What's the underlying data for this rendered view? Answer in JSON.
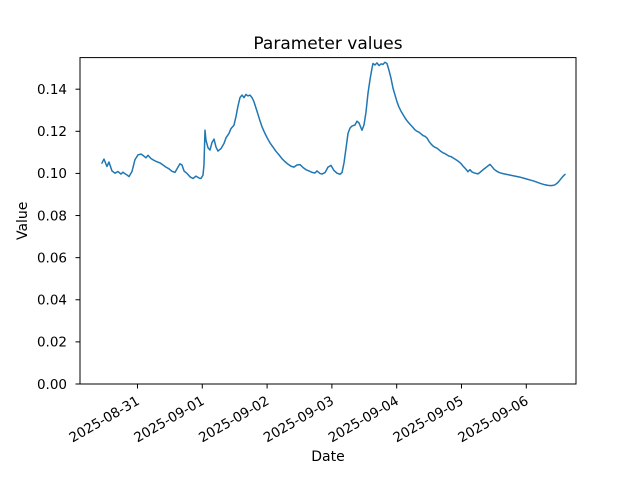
{
  "figure": {
    "background": "#ffffff"
  },
  "chart_data": {
    "type": "line",
    "title": "Parameter values",
    "xlabel": "Date",
    "ylabel": "Value",
    "grid": false,
    "legend": "none",
    "line_color": "#1f77b4",
    "line_width": 1.5,
    "axes_color": "#000000",
    "x_unit": "days since 2025-08-31 00:00",
    "xlim": [
      -0.887,
      6.767
    ],
    "ylim": [
      0,
      0.155
    ],
    "x_ticks": [
      {
        "d": 0,
        "label": "2025-08-31"
      },
      {
        "d": 1,
        "label": "2025-09-01"
      },
      {
        "d": 2,
        "label": "2025-09-02"
      },
      {
        "d": 3,
        "label": "2025-09-03"
      },
      {
        "d": 4,
        "label": "2025-09-04"
      },
      {
        "d": 5,
        "label": "2025-09-05"
      },
      {
        "d": 6,
        "label": "2025-09-06"
      }
    ],
    "y_ticks": [
      {
        "v": 0.0,
        "label": "0.00"
      },
      {
        "v": 0.02,
        "label": "0.02"
      },
      {
        "v": 0.04,
        "label": "0.04"
      },
      {
        "v": 0.06,
        "label": "0.06"
      },
      {
        "v": 0.08,
        "label": "0.08"
      },
      {
        "v": 0.1,
        "label": "0.10"
      },
      {
        "v": 0.12,
        "label": "0.12"
      },
      {
        "v": 0.14,
        "label": "0.14"
      }
    ],
    "noise_amplitude": 0.0006,
    "series": [
      {
        "name": "parameter",
        "points": [
          [
            -0.548,
            0.1049
          ],
          [
            -0.517,
            0.1068
          ],
          [
            -0.471,
            0.1033
          ],
          [
            -0.44,
            0.1054
          ],
          [
            -0.394,
            0.1012
          ],
          [
            -0.347,
            0.1001
          ],
          [
            -0.301,
            0.1009
          ],
          [
            -0.255,
            0.0997
          ],
          [
            -0.224,
            0.1006
          ],
          [
            -0.162,
            0.0993
          ],
          [
            -0.131,
            0.0985
          ],
          [
            -0.085,
            0.1009
          ],
          [
            -0.039,
            0.1065
          ],
          [
            0.008,
            0.1088
          ],
          [
            0.054,
            0.1092
          ],
          [
            0.1,
            0.1082
          ],
          [
            0.131,
            0.1074
          ],
          [
            0.162,
            0.1086
          ],
          [
            0.208,
            0.1071
          ],
          [
            0.255,
            0.1062
          ],
          [
            0.301,
            0.1055
          ],
          [
            0.347,
            0.105
          ],
          [
            0.394,
            0.104
          ],
          [
            0.44,
            0.103
          ],
          [
            0.486,
            0.1022
          ],
          [
            0.532,
            0.101
          ],
          [
            0.579,
            0.1005
          ],
          [
            0.625,
            0.103
          ],
          [
            0.656,
            0.1046
          ],
          [
            0.687,
            0.104
          ],
          [
            0.718,
            0.1012
          ],
          [
            0.764,
            0.1
          ],
          [
            0.81,
            0.0984
          ],
          [
            0.856,
            0.0976
          ],
          [
            0.903,
            0.0987
          ],
          [
            0.949,
            0.0978
          ],
          [
            0.98,
            0.0976
          ],
          [
            1.011,
            0.0992
          ],
          [
            1.026,
            0.104
          ],
          [
            1.042,
            0.1205
          ],
          [
            1.057,
            0.1158
          ],
          [
            1.088,
            0.1122
          ],
          [
            1.119,
            0.1111
          ],
          [
            1.15,
            0.1147
          ],
          [
            1.181,
            0.1163
          ],
          [
            1.211,
            0.1126
          ],
          [
            1.242,
            0.1106
          ],
          [
            1.289,
            0.1118
          ],
          [
            1.335,
            0.1142
          ],
          [
            1.366,
            0.1169
          ],
          [
            1.412,
            0.119
          ],
          [
            1.443,
            0.1213
          ],
          [
            1.489,
            0.1229
          ],
          [
            1.52,
            0.127
          ],
          [
            1.551,
            0.132
          ],
          [
            1.582,
            0.136
          ],
          [
            1.613,
            0.1372
          ],
          [
            1.644,
            0.136
          ],
          [
            1.674,
            0.1375
          ],
          [
            1.705,
            0.1368
          ],
          [
            1.736,
            0.1372
          ],
          [
            1.767,
            0.136
          ],
          [
            1.798,
            0.134
          ],
          [
            1.829,
            0.131
          ],
          [
            1.86,
            0.128
          ],
          [
            1.89,
            0.125
          ],
          [
            1.921,
            0.1222
          ],
          [
            1.952,
            0.12
          ],
          [
            1.983,
            0.118
          ],
          [
            2.014,
            0.1162
          ],
          [
            2.045,
            0.1145
          ],
          [
            2.091,
            0.1125
          ],
          [
            2.137,
            0.1105
          ],
          [
            2.184,
            0.1088
          ],
          [
            2.23,
            0.107
          ],
          [
            2.276,
            0.1056
          ],
          [
            2.322,
            0.1044
          ],
          [
            2.369,
            0.1034
          ],
          [
            2.415,
            0.103
          ],
          [
            2.461,
            0.104
          ],
          [
            2.508,
            0.1042
          ],
          [
            2.554,
            0.1028
          ],
          [
            2.6,
            0.1018
          ],
          [
            2.646,
            0.1012
          ],
          [
            2.693,
            0.1005
          ],
          [
            2.739,
            0.1002
          ],
          [
            2.77,
            0.1012
          ],
          [
            2.816,
            0.1
          ],
          [
            2.847,
            0.0997
          ],
          [
            2.894,
            0.1004
          ],
          [
            2.94,
            0.103
          ],
          [
            2.986,
            0.1038
          ],
          [
            3.032,
            0.1014
          ],
          [
            3.079,
            0.1001
          ],
          [
            3.125,
            0.0996
          ],
          [
            3.156,
            0.1004
          ],
          [
            3.187,
            0.105
          ],
          [
            3.218,
            0.112
          ],
          [
            3.249,
            0.119
          ],
          [
            3.279,
            0.1215
          ],
          [
            3.31,
            0.1225
          ],
          [
            3.356,
            0.123
          ],
          [
            3.387,
            0.1248
          ],
          [
            3.418,
            0.124
          ],
          [
            3.464,
            0.1205
          ],
          [
            3.495,
            0.123
          ],
          [
            3.526,
            0.129
          ],
          [
            3.557,
            0.138
          ],
          [
            3.588,
            0.1445
          ],
          [
            3.619,
            0.15
          ],
          [
            3.634,
            0.1522
          ],
          [
            3.665,
            0.1515
          ],
          [
            3.696,
            0.1525
          ],
          [
            3.727,
            0.1512
          ],
          [
            3.758,
            0.152
          ],
          [
            3.789,
            0.1518
          ],
          [
            3.819,
            0.1528
          ],
          [
            3.85,
            0.1522
          ],
          [
            3.881,
            0.149
          ],
          [
            3.912,
            0.1452
          ],
          [
            3.943,
            0.1405
          ],
          [
            3.974,
            0.1372
          ],
          [
            4.005,
            0.134
          ],
          [
            4.035,
            0.1315
          ],
          [
            4.066,
            0.1296
          ],
          [
            4.097,
            0.128
          ],
          [
            4.128,
            0.1264
          ],
          [
            4.159,
            0.125
          ],
          [
            4.19,
            0.1239
          ],
          [
            4.221,
            0.1228
          ],
          [
            4.252,
            0.1218
          ],
          [
            4.282,
            0.1207
          ],
          [
            4.313,
            0.12
          ],
          [
            4.344,
            0.1196
          ],
          [
            4.375,
            0.1188
          ],
          [
            4.406,
            0.118
          ],
          [
            4.437,
            0.1176
          ],
          [
            4.468,
            0.1168
          ],
          [
            4.498,
            0.1152
          ],
          [
            4.529,
            0.114
          ],
          [
            4.56,
            0.113
          ],
          [
            4.591,
            0.1124
          ],
          [
            4.622,
            0.112
          ],
          [
            4.653,
            0.1112
          ],
          [
            4.684,
            0.1104
          ],
          [
            4.714,
            0.1098
          ],
          [
            4.745,
            0.1094
          ],
          [
            4.776,
            0.1088
          ],
          [
            4.807,
            0.1082
          ],
          [
            4.838,
            0.108
          ],
          [
            4.869,
            0.1074
          ],
          [
            4.9,
            0.1068
          ],
          [
            4.931,
            0.1062
          ],
          [
            4.961,
            0.1055
          ],
          [
            4.992,
            0.1047
          ],
          [
            5.023,
            0.1035
          ],
          [
            5.054,
            0.1025
          ],
          [
            5.085,
            0.1014
          ],
          [
            5.1,
            0.1008
          ],
          [
            5.131,
            0.1018
          ],
          [
            5.162,
            0.1007
          ],
          [
            5.193,
            0.1003
          ],
          [
            5.224,
            0.1
          ],
          [
            5.255,
            0.0998
          ],
          [
            5.285,
            0.1005
          ],
          [
            5.316,
            0.1013
          ],
          [
            5.347,
            0.1021
          ],
          [
            5.378,
            0.1028
          ],
          [
            5.409,
            0.1036
          ],
          [
            5.44,
            0.1043
          ],
          [
            5.471,
            0.1032
          ],
          [
            5.502,
            0.102
          ],
          [
            5.532,
            0.1013
          ],
          [
            5.563,
            0.1007
          ],
          [
            5.594,
            0.1003
          ],
          [
            5.641,
            0.0999
          ],
          [
            5.687,
            0.0996
          ],
          [
            5.733,
            0.0993
          ],
          [
            5.779,
            0.099
          ],
          [
            5.826,
            0.0987
          ],
          [
            5.872,
            0.0984
          ],
          [
            5.918,
            0.0981
          ],
          [
            5.965,
            0.0977
          ],
          [
            6.011,
            0.0973
          ],
          [
            6.057,
            0.0969
          ],
          [
            6.103,
            0.0965
          ],
          [
            6.15,
            0.096
          ],
          [
            6.196,
            0.0955
          ],
          [
            6.242,
            0.095
          ],
          [
            6.289,
            0.0946
          ],
          [
            6.335,
            0.0943
          ],
          [
            6.381,
            0.0942
          ],
          [
            6.412,
            0.0943
          ],
          [
            6.443,
            0.0946
          ],
          [
            6.474,
            0.0953
          ],
          [
            6.505,
            0.0963
          ],
          [
            6.536,
            0.0975
          ],
          [
            6.566,
            0.0986
          ],
          [
            6.597,
            0.0995
          ]
        ]
      }
    ]
  }
}
